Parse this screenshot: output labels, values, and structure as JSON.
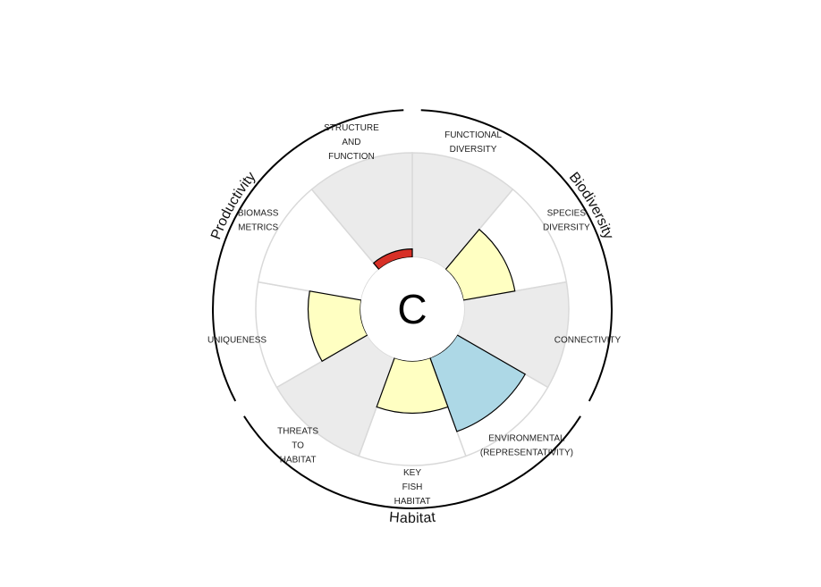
{
  "chart_data": {
    "type": "polar-bar",
    "grade": "C",
    "colors": {
      "background": "#ebebeb",
      "good": "#add8e6",
      "fair": "#ffffc2",
      "poor": "#d73027",
      "outline": "#000000",
      "ring": "#000000"
    },
    "groups": [
      {
        "name": "Biodiversity",
        "segments": [
          "FUNCTIONAL DIVERSITY",
          "SPECIES DIVERSITY",
          "CONNECTIVITY"
        ]
      },
      {
        "name": "Habitat",
        "segments": [
          "ENVIRONMENTAL (REPRESENTATIVITY)",
          "KEY FISH HABITAT",
          "THREATS TO HABITAT"
        ]
      },
      {
        "name": "Productivity",
        "segments": [
          "UNIQUENESS",
          "BIOMASS METRICS",
          "STRUCTURE AND FUNCTION"
        ]
      }
    ],
    "segments": [
      {
        "label": [
          "FUNCTIONAL",
          "DIVERSITY"
        ],
        "value": null,
        "shade": true,
        "status": null
      },
      {
        "label": [
          "SPECIES",
          "DIVERSITY"
        ],
        "value": 0.5,
        "shade": false,
        "status": "fair"
      },
      {
        "label": [
          "CONNECTIVITY"
        ],
        "value": null,
        "shade": true,
        "status": null
      },
      {
        "label": [
          "ENVIRONMENTAL",
          "(REPRESENTATIVITY)"
        ],
        "value": 0.75,
        "shade": false,
        "status": "good"
      },
      {
        "label": [
          "KEY",
          "FISH",
          "HABITAT"
        ],
        "value": 0.5,
        "shade": false,
        "status": "fair"
      },
      {
        "label": [
          "THREATS",
          "TO",
          "HABITAT"
        ],
        "value": null,
        "shade": true,
        "status": null
      },
      {
        "label": [
          "UNIQUENESS"
        ],
        "value": 0.5,
        "shade": false,
        "status": "fair"
      },
      {
        "label": [
          "BIOMASS",
          "METRICS"
        ],
        "value": null,
        "shade": false,
        "status": null
      },
      {
        "label": [
          "STRUCTURE",
          "AND",
          "FUNCTION"
        ],
        "value": 0.08,
        "shade": true,
        "status": "poor"
      }
    ]
  }
}
